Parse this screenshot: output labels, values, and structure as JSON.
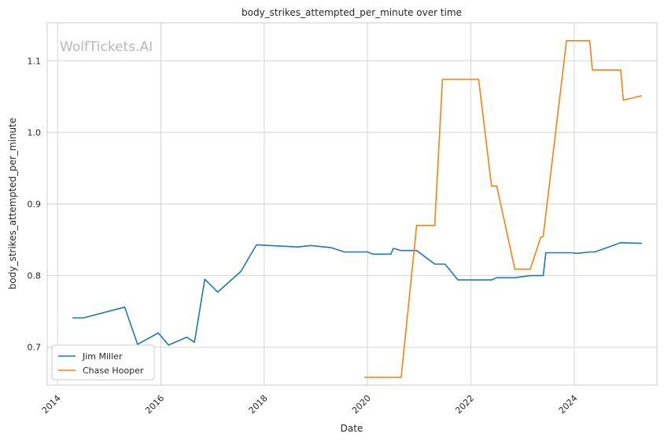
{
  "chart_data": {
    "type": "line",
    "title": "body_strikes_attempted_per_minute over time",
    "xlabel": "Date",
    "ylabel": "body_strikes_attempted_per_minute",
    "watermark": "WolfTickets.AI",
    "xlim": [
      2013.8,
      2025.6
    ],
    "ylim": [
      0.647,
      1.153
    ],
    "x_ticks": [
      "2014",
      "2016",
      "2018",
      "2020",
      "2022",
      "2024"
    ],
    "y_ticks": [
      "0.7",
      "0.8",
      "0.9",
      "1.0",
      "1.1"
    ],
    "grid": true,
    "legend_position": "lower-left",
    "series": [
      {
        "name": "Jim Miller",
        "color": "#1f77b4",
        "points": [
          [
            2014.3,
            0.741
          ],
          [
            2014.5,
            0.741
          ],
          [
            2015.3,
            0.756
          ],
          [
            2015.55,
            0.704
          ],
          [
            2015.95,
            0.72
          ],
          [
            2016.15,
            0.703
          ],
          [
            2016.5,
            0.714
          ],
          [
            2016.65,
            0.707
          ],
          [
            2016.85,
            0.795
          ],
          [
            2017.1,
            0.777
          ],
          [
            2017.55,
            0.806
          ],
          [
            2017.85,
            0.843
          ],
          [
            2018.1,
            0.842
          ],
          [
            2018.65,
            0.84
          ],
          [
            2018.9,
            0.842
          ],
          [
            2019.3,
            0.839
          ],
          [
            2019.55,
            0.833
          ],
          [
            2020.0,
            0.833
          ],
          [
            2020.1,
            0.83
          ],
          [
            2020.45,
            0.83
          ],
          [
            2020.5,
            0.838
          ],
          [
            2020.65,
            0.835
          ],
          [
            2020.95,
            0.835
          ],
          [
            2021.3,
            0.816
          ],
          [
            2021.5,
            0.816
          ],
          [
            2021.75,
            0.794
          ],
          [
            2022.4,
            0.794
          ],
          [
            2022.5,
            0.797
          ],
          [
            2022.85,
            0.797
          ],
          [
            2023.15,
            0.8
          ],
          [
            2023.4,
            0.8
          ],
          [
            2023.45,
            0.832
          ],
          [
            2023.95,
            0.832
          ],
          [
            2024.05,
            0.831
          ],
          [
            2024.3,
            0.833
          ],
          [
            2024.4,
            0.833
          ],
          [
            2024.9,
            0.846
          ],
          [
            2025.3,
            0.845
          ]
        ]
      },
      {
        "name": "Chase Hooper",
        "color": "#ff7f0e",
        "points": [
          [
            2019.95,
            0.658
          ],
          [
            2020.65,
            0.658
          ],
          [
            2020.95,
            0.87
          ],
          [
            2021.3,
            0.87
          ],
          [
            2021.45,
            1.074
          ],
          [
            2022.15,
            1.074
          ],
          [
            2022.4,
            0.925
          ],
          [
            2022.5,
            0.925
          ],
          [
            2022.85,
            0.809
          ],
          [
            2023.15,
            0.809
          ],
          [
            2023.35,
            0.853
          ],
          [
            2023.4,
            0.855
          ],
          [
            2023.85,
            1.128
          ],
          [
            2024.3,
            1.128
          ],
          [
            2024.35,
            1.087
          ],
          [
            2024.9,
            1.087
          ],
          [
            2024.95,
            1.045
          ],
          [
            2025.3,
            1.051
          ]
        ]
      }
    ]
  }
}
